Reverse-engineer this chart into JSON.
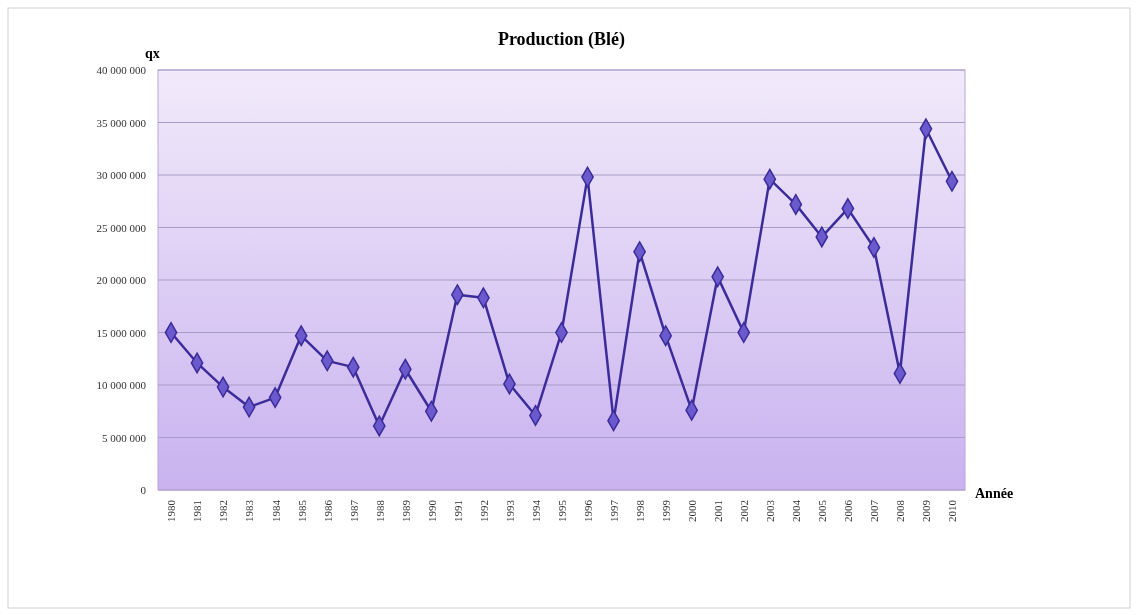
{
  "chart_data": {
    "type": "line",
    "title": "Production (Blé)",
    "xlabel": "Année",
    "ylabel": "qx",
    "categories": [
      "1980",
      "1981",
      "1982",
      "1983",
      "1984",
      "1985",
      "1986",
      "1987",
      "1988",
      "1989",
      "1990",
      "1991",
      "1992",
      "1993",
      "1994",
      "1995",
      "1996",
      "1997",
      "1998",
      "1999",
      "2000",
      "2001",
      "2002",
      "2003",
      "2004",
      "2005",
      "2006",
      "2007",
      "2008",
      "2009",
      "2010"
    ],
    "series": [
      {
        "color": "#3b2c9a",
        "values": [
          15000000,
          12100000,
          9800000,
          7900000,
          8800000,
          14700000,
          12300000,
          11700000,
          6100000,
          11500000,
          7500000,
          18600000,
          18300000,
          10100000,
          7100000,
          15000000,
          29800000,
          6600000,
          22700000,
          14700000,
          7600000,
          20300000,
          15000000,
          29600000,
          27200000,
          24100000,
          26800000,
          23100000,
          11100000,
          34400000,
          29400000
        ]
      }
    ],
    "ylim": [
      0,
      40000000
    ],
    "yticks": [
      {
        "value": 0,
        "label": "0"
      },
      {
        "value": 5000000,
        "label": "5 000 000"
      },
      {
        "value": 10000000,
        "label": "10 000 000"
      },
      {
        "value": 15000000,
        "label": "15 000 000"
      },
      {
        "value": 20000000,
        "label": "20 000 000"
      },
      {
        "value": 25000000,
        "label": "25 000 000"
      },
      {
        "value": 30000000,
        "label": "30 000 000"
      },
      {
        "value": 35000000,
        "label": "35 000 000"
      },
      {
        "value": 40000000,
        "label": "40 000 000"
      }
    ],
    "grid": "y",
    "marker": "diamond",
    "line_style": "solid",
    "legend": false
  }
}
